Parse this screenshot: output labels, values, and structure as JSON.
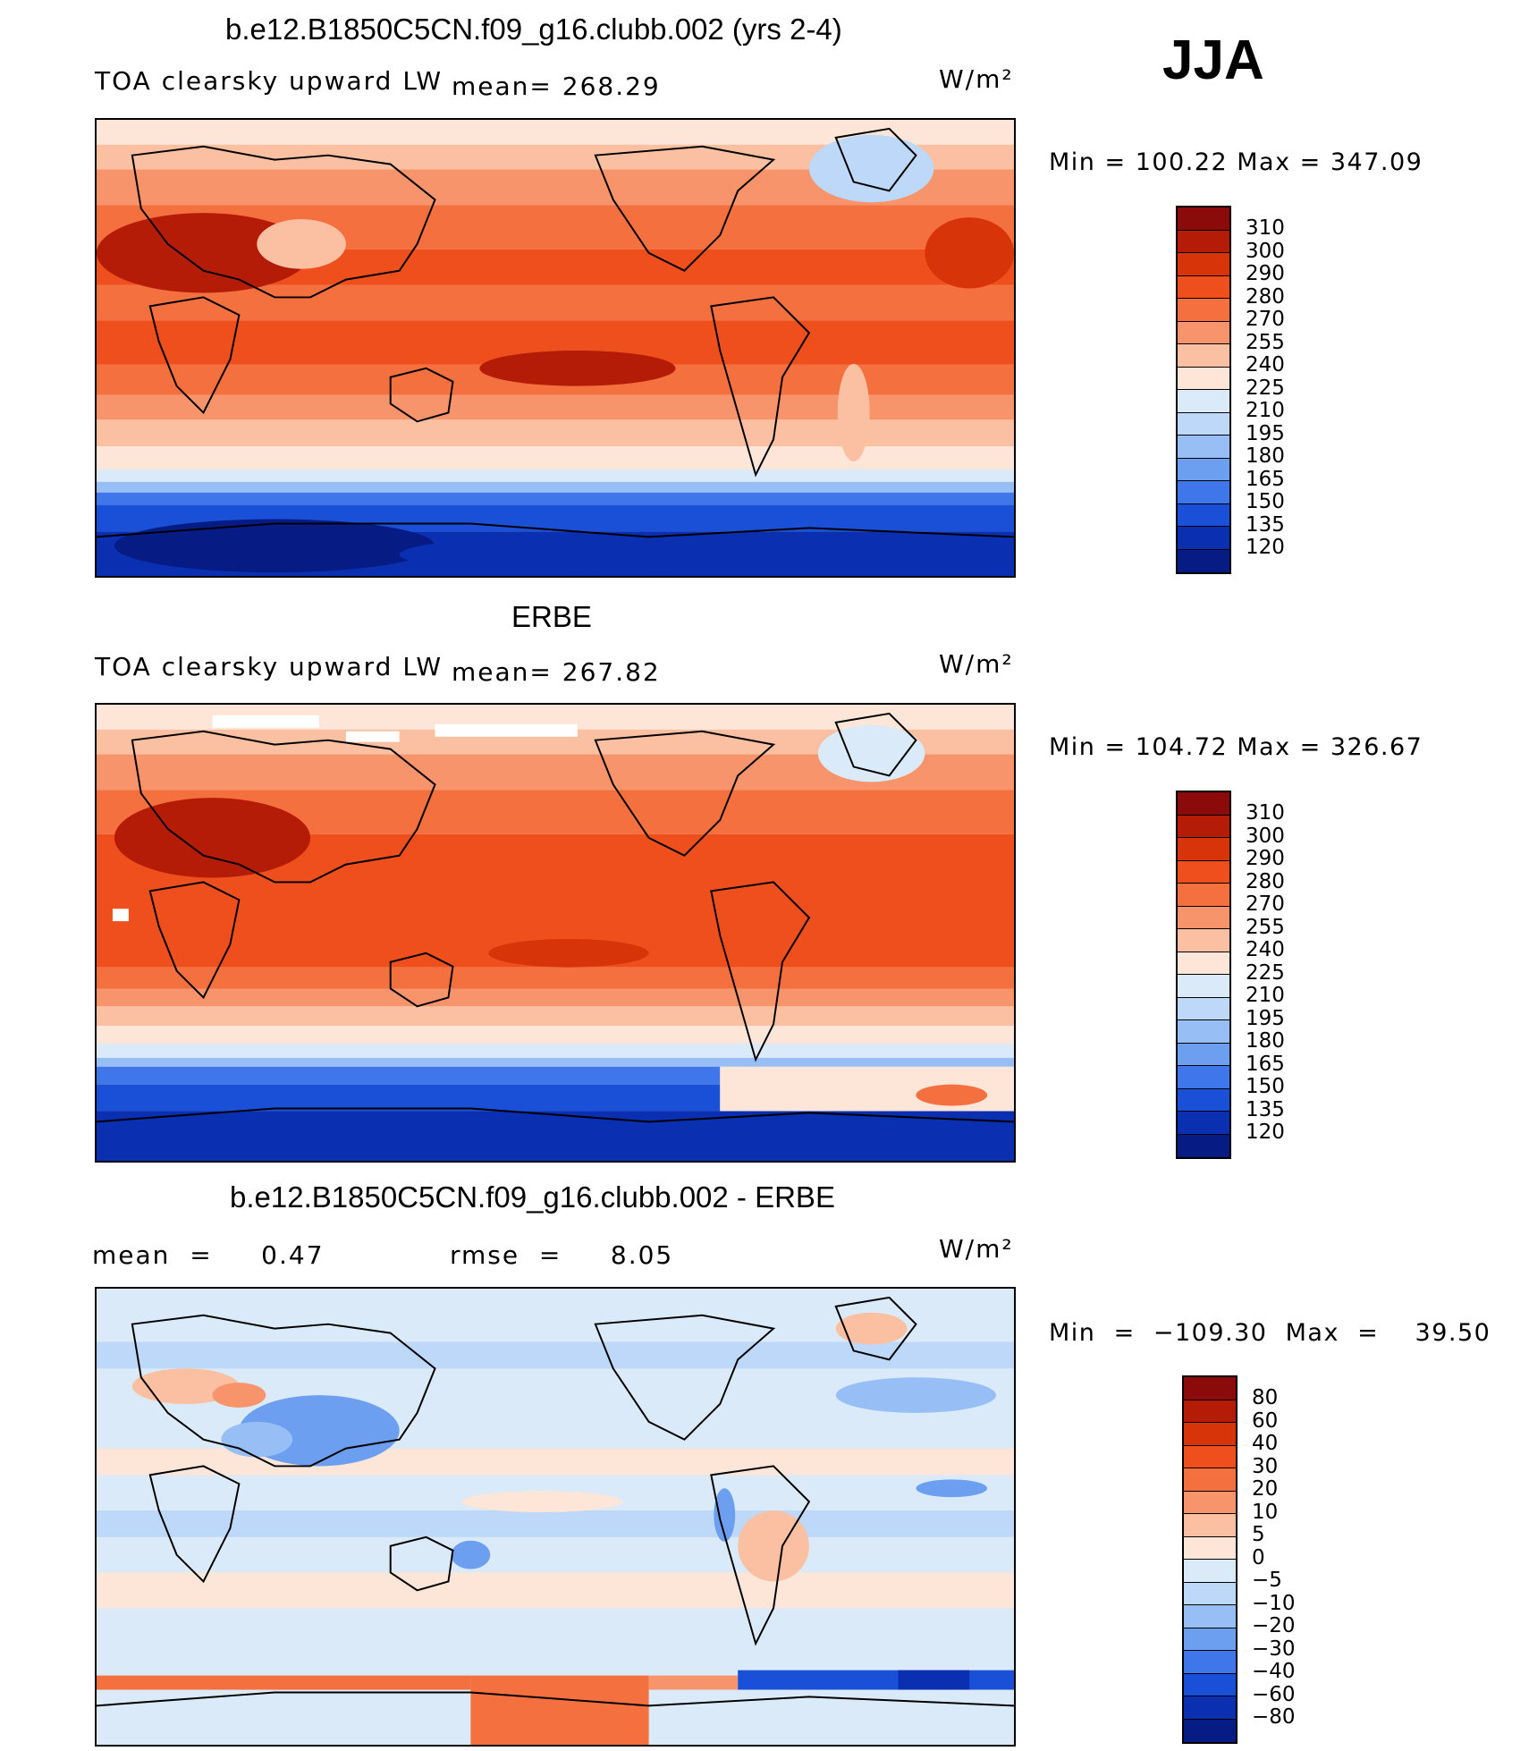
{
  "season": "JJA",
  "units": "W/m²",
  "panels": [
    {
      "title": "b.e12.B1850C5CN.f09_g16.clubb.002 (yrs 2-4)",
      "variable": "TOA clearsky upward LW",
      "stat": "mean= 268.29",
      "units": "W/m²",
      "minmax": "Min  =  100.22  Max  =  347.09"
    },
    {
      "title": "ERBE",
      "variable": "TOA clearsky upward LW",
      "stat": "mean= 267.82",
      "units": "W/m²",
      "minmax": "Min  =  104.72  Max  =  326.67"
    },
    {
      "title": "b.e12.B1850C5CN.f09_g16.clubb.002 - ERBE",
      "stat_mean": "mean  =     0.47",
      "stat_rmse": "rmse  =     8.05",
      "units": "W/m²",
      "minmax": "Min  =  −109.30  Max  =    39.50"
    }
  ],
  "colorbars": {
    "absolute": {
      "labels": [
        "310",
        "300",
        "290",
        "280",
        "270",
        "255",
        "240",
        "225",
        "210",
        "195",
        "180",
        "165",
        "150",
        "135",
        "120"
      ],
      "colors": [
        "#8b0a0a",
        "#b51c08",
        "#d8340a",
        "#ee4f1d",
        "#f5703f",
        "#f8946b",
        "#fbc0a2",
        "#fde6d8",
        "#dbeaf8",
        "#bdd8f8",
        "#97bff6",
        "#6c9ff0",
        "#3f77ea",
        "#1a4fd7",
        "#0a2fb0",
        "#061b84"
      ]
    },
    "difference": {
      "labels": [
        "80",
        "60",
        "40",
        "30",
        "20",
        "10",
        "5",
        "0",
        "−5",
        "−10",
        "−20",
        "−30",
        "−40",
        "−60",
        "−80"
      ],
      "colors": [
        "#8b0a0a",
        "#b51c08",
        "#d8340a",
        "#ee4f1d",
        "#f5703f",
        "#f8946b",
        "#fbc0a2",
        "#fde6d8",
        "#dbeaf8",
        "#bdd8f8",
        "#97bff6",
        "#6c9ff0",
        "#3f77ea",
        "#1a4fd7",
        "#0a2fb0",
        "#061b84"
      ]
    }
  }
}
